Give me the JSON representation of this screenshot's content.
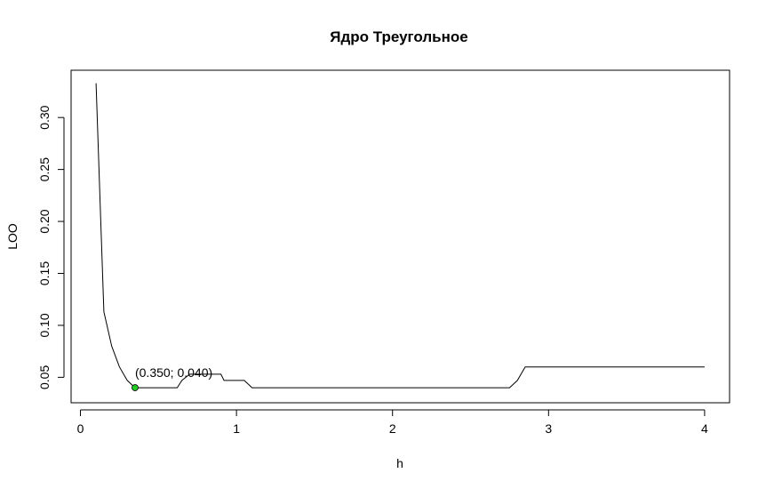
{
  "chart_data": {
    "type": "line",
    "title": "Ядро Треугольное",
    "xlabel": "h",
    "ylabel": "LOO",
    "xlim": [
      -0.06,
      4.16
    ],
    "ylim": [
      0.0255,
      0.3455
    ],
    "x_ticks": [
      0,
      1,
      2,
      3,
      4
    ],
    "x_tick_labels": [
      "0",
      "1",
      "2",
      "3",
      "4"
    ],
    "y_ticks": [
      0.05,
      0.1,
      0.15,
      0.2,
      0.25,
      0.3
    ],
    "y_tick_labels": [
      "0.05",
      "0.10",
      "0.15",
      "0.20",
      "0.25",
      "0.30"
    ],
    "grid": false,
    "legend": "none",
    "series": [
      {
        "color": "#000000",
        "x": [
          0.1,
          0.13,
          0.15,
          0.2,
          0.25,
          0.3,
          0.35,
          0.4,
          0.45,
          0.5,
          0.55,
          0.6,
          0.62,
          0.65,
          0.7,
          0.75,
          0.8,
          0.85,
          0.9,
          0.92,
          0.95,
          1.0,
          1.05,
          1.1,
          1.2,
          1.5,
          2.0,
          2.5,
          2.75,
          2.8,
          2.85,
          2.9,
          3.0,
          3.5,
          4.0
        ],
        "y": [
          0.333,
          0.2,
          0.113,
          0.08,
          0.06,
          0.047,
          0.04,
          0.04,
          0.04,
          0.04,
          0.04,
          0.04,
          0.04,
          0.047,
          0.053,
          0.053,
          0.053,
          0.053,
          0.053,
          0.047,
          0.047,
          0.047,
          0.047,
          0.04,
          0.04,
          0.04,
          0.04,
          0.04,
          0.04,
          0.047,
          0.06,
          0.06,
          0.06,
          0.06,
          0.06
        ]
      }
    ],
    "highlight_point": {
      "x": 0.35,
      "y": 0.04,
      "color": "#22cc22",
      "label": "(0.350; 0.040)"
    }
  }
}
